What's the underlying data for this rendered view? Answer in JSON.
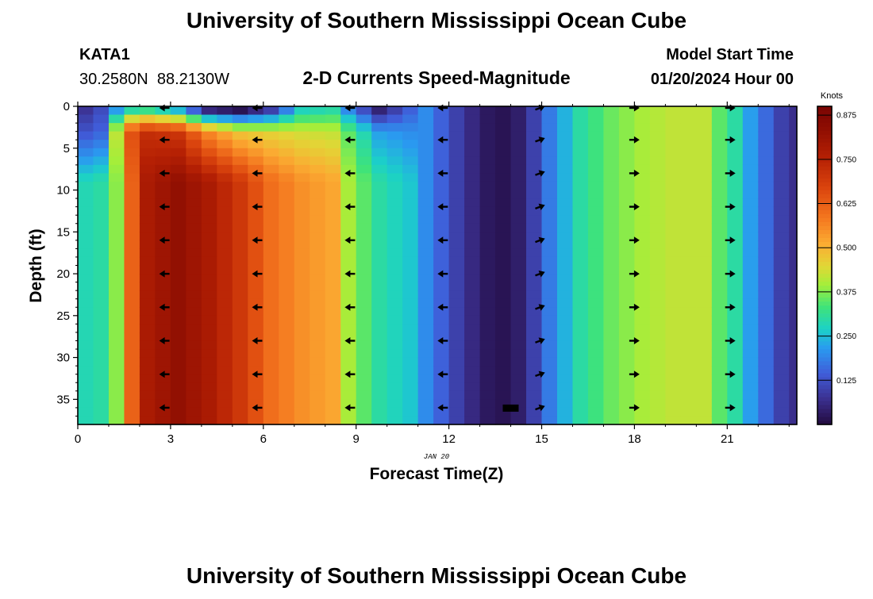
{
  "page": {
    "title": "University of Southern Mississippi Ocean Cube",
    "footer_title": "University of Southern Mississippi Ocean Cube"
  },
  "station": {
    "id": "KATA1",
    "coords": "30.2580N  88.2130W"
  },
  "model": {
    "label": "Model Start Time",
    "start": "01/20/2024 Hour 00"
  },
  "chart_data": {
    "type": "heatmap",
    "title": "2-D Currents Speed-Magnitude",
    "xlabel": "Forecast Time(Z)",
    "ylabel": "Depth (ft)",
    "date_label": "JAN 20",
    "x_range": [
      0,
      23.25
    ],
    "y_range": [
      0,
      38
    ],
    "x_ticks": [
      0,
      3,
      6,
      9,
      12,
      15,
      18,
      21
    ],
    "y_ticks": [
      0,
      5,
      10,
      15,
      20,
      25,
      30,
      35
    ],
    "x_step_hours": 0.5,
    "colorbar": {
      "label": "Knots",
      "min": 0.0,
      "max": 0.9,
      "ticks": [
        "0.125",
        "0.250",
        "0.375",
        "0.500",
        "0.625",
        "0.750",
        "0.875"
      ]
    },
    "profile": {
      "times": [
        0,
        0.75,
        1.25,
        1.75,
        2.25,
        3.25,
        4.25,
        5.25,
        6.25,
        7.25,
        8.25,
        8.75,
        9.75,
        10.75,
        11.25,
        11.75,
        12.25,
        12.75,
        13.25,
        13.75,
        14.25,
        14.75,
        15.25,
        15.75,
        16.25,
        17.25,
        18.25,
        19.25,
        20.25,
        20.75,
        21.25,
        21.75,
        22.25,
        22.75,
        23.25
      ],
      "deep_speed_knots": [
        0.28,
        0.3,
        0.38,
        0.62,
        0.78,
        0.83,
        0.78,
        0.7,
        0.6,
        0.55,
        0.52,
        0.4,
        0.3,
        0.26,
        0.2,
        0.15,
        0.1,
        0.06,
        0.03,
        0.02,
        0.04,
        0.1,
        0.18,
        0.24,
        0.3,
        0.36,
        0.4,
        0.42,
        0.42,
        0.35,
        0.3,
        0.22,
        0.16,
        0.1,
        0.06
      ],
      "surface_speed_knots": [
        0.06,
        0.12,
        0.22,
        0.3,
        0.32,
        0.25,
        0.06,
        0.02,
        0.1,
        0.28,
        0.3,
        0.2,
        0.05,
        0.15,
        0.2,
        0.15,
        0.1,
        0.06,
        0.03,
        0.02,
        0.04,
        0.1,
        0.18,
        0.24,
        0.3,
        0.36,
        0.4,
        0.42,
        0.42,
        0.35,
        0.3,
        0.22,
        0.16,
        0.1,
        0.06
      ],
      "upper_layer_speed_knots": [
        0.12,
        0.15,
        0.42,
        0.65,
        0.72,
        0.7,
        0.55,
        0.47,
        0.45,
        0.43,
        0.42,
        0.35,
        0.22,
        0.2,
        0.2,
        0.15,
        0.1,
        0.06,
        0.03,
        0.02,
        0.04,
        0.1,
        0.18,
        0.24,
        0.3,
        0.36,
        0.4,
        0.42,
        0.42,
        0.35,
        0.3,
        0.22,
        0.16,
        0.1,
        0.06
      ]
    },
    "vector_times": [
      2.8,
      5.8,
      8.8,
      11.8,
      14.95,
      18,
      21.1
    ],
    "vector_depths": [
      0,
      4,
      8,
      12,
      16,
      20,
      24,
      28,
      32,
      36
    ],
    "vector_angles_deg": [
      180,
      180,
      180,
      180,
      20,
      0,
      0
    ],
    "missing_cells": [
      {
        "t": 14.0,
        "depth": 36
      }
    ]
  }
}
